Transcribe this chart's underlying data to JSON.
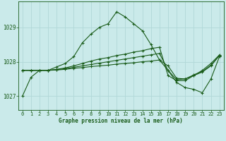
{
  "xlabel": "Graphe pression niveau de la mer (hPa)",
  "bg_color": "#caeaea",
  "grid_color": "#b0d8d8",
  "line_color": "#1a5c1a",
  "marker": "+",
  "xlim": [
    -0.5,
    23.5
  ],
  "ylim": [
    1026.6,
    1029.75
  ],
  "yticks": [
    1027,
    1028,
    1029
  ],
  "xticks": [
    0,
    1,
    2,
    3,
    4,
    5,
    6,
    7,
    8,
    9,
    10,
    11,
    12,
    13,
    14,
    15,
    16,
    17,
    18,
    19,
    20,
    21,
    22,
    23
  ],
  "series": [
    [
      1027.0,
      1027.55,
      1027.75,
      1027.75,
      1027.85,
      1027.95,
      1028.15,
      1028.55,
      1028.8,
      1029.0,
      1029.1,
      1029.45,
      1029.3,
      1029.1,
      1028.9,
      1028.5,
      1028.05,
      1027.75,
      1027.4,
      1027.25,
      1027.2,
      1027.1,
      1027.5,
      1028.15
    ],
    [
      1027.75,
      1027.75,
      1027.75,
      1027.75,
      1027.78,
      1027.82,
      1027.88,
      1027.95,
      1028.02,
      1028.08,
      1028.12,
      1028.18,
      1028.22,
      1028.28,
      1028.32,
      1028.38,
      1028.42,
      1027.6,
      1027.45,
      1027.45,
      1027.6,
      1027.75,
      1027.95,
      1028.2
    ],
    [
      1027.75,
      1027.75,
      1027.75,
      1027.75,
      1027.77,
      1027.8,
      1027.84,
      1027.88,
      1027.92,
      1027.96,
      1028.0,
      1028.04,
      1028.08,
      1028.12,
      1028.16,
      1028.2,
      1028.24,
      1027.75,
      1027.48,
      1027.5,
      1027.6,
      1027.7,
      1027.88,
      1028.18
    ],
    [
      1027.75,
      1027.75,
      1027.75,
      1027.75,
      1027.76,
      1027.78,
      1027.81,
      1027.83,
      1027.86,
      1027.88,
      1027.9,
      1027.93,
      1027.95,
      1027.97,
      1028.0,
      1028.02,
      1028.05,
      1027.88,
      1027.52,
      1027.5,
      1027.62,
      1027.72,
      1027.9,
      1028.18
    ]
  ]
}
